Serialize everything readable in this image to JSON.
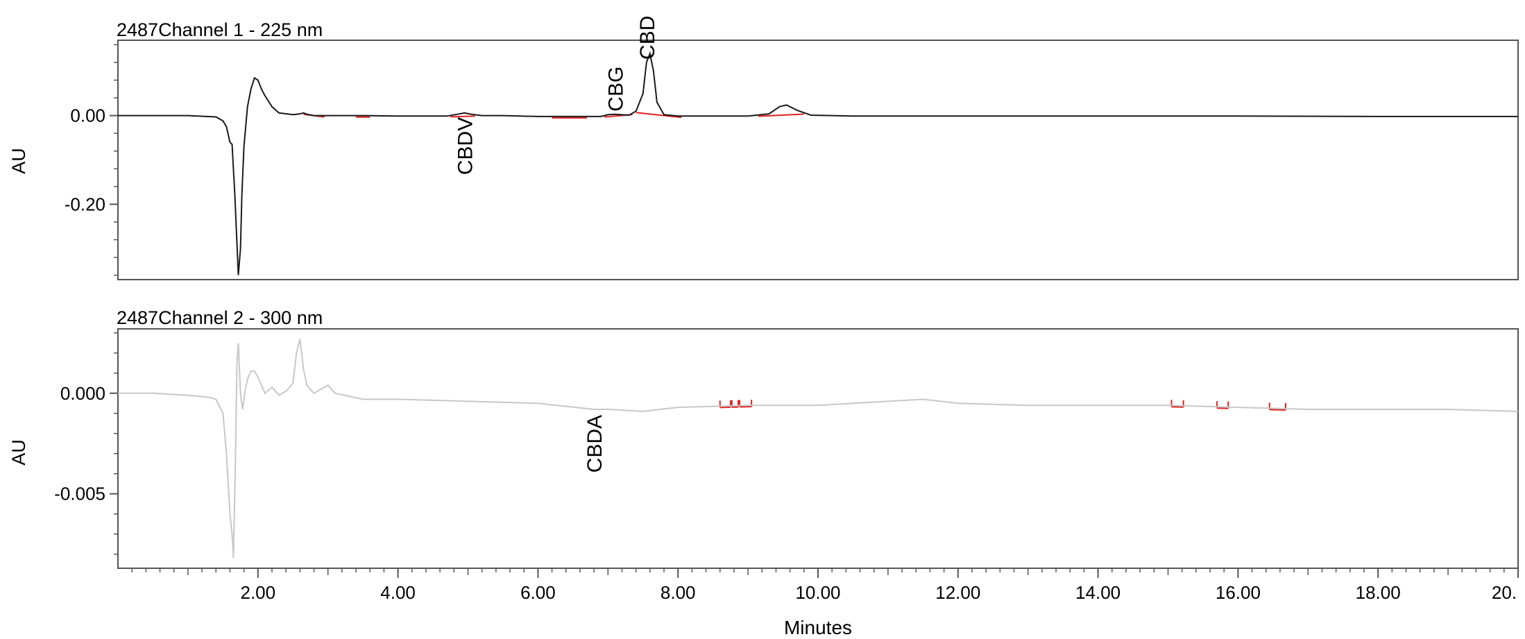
{
  "x_axis": {
    "label": "Minutes",
    "ticks": [
      "2.00",
      "4.00",
      "6.00",
      "8.00",
      "10.00",
      "12.00",
      "14.00",
      "16.00",
      "18.00",
      "20."
    ]
  },
  "chart_data": [
    {
      "type": "line",
      "title": "2487Channel 1 - 225 nm",
      "xlabel": "Minutes",
      "ylabel": "AU",
      "xlim": [
        0.0,
        20.0
      ],
      "ylim": [
        -0.37,
        0.17
      ],
      "y_ticks": [
        0.0,
        -0.2
      ],
      "y_tick_labels": [
        "0.00",
        "-0.20"
      ],
      "x": [
        0.0,
        1.0,
        1.4,
        1.5,
        1.55,
        1.6,
        1.63,
        1.67,
        1.72,
        1.75,
        1.77,
        1.8,
        1.85,
        1.9,
        1.95,
        2.0,
        2.05,
        2.1,
        2.2,
        2.3,
        2.5,
        2.6,
        2.65,
        2.7,
        2.8,
        3.0,
        3.5,
        4.0,
        4.7,
        4.85,
        4.95,
        5.05,
        5.2,
        5.5,
        6.0,
        6.5,
        6.9,
        7.0,
        7.1,
        7.3,
        7.4,
        7.5,
        7.55,
        7.6,
        7.65,
        7.7,
        7.8,
        8.0,
        8.5,
        9.0,
        9.3,
        9.45,
        9.55,
        9.7,
        9.9,
        10.5,
        12.0,
        14.0,
        16.0,
        18.0,
        20.0
      ],
      "y": [
        0.0,
        0.0,
        -0.003,
        -0.012,
        -0.025,
        -0.06,
        -0.065,
        -0.18,
        -0.36,
        -0.3,
        -0.18,
        -0.07,
        0.02,
        0.06,
        0.085,
        0.08,
        0.06,
        0.045,
        0.02,
        0.006,
        0.002,
        0.004,
        0.006,
        0.003,
        0.0,
        0.0,
        0.0,
        -0.001,
        -0.001,
        0.003,
        0.006,
        0.003,
        0.0,
        0.0,
        -0.002,
        -0.002,
        -0.002,
        0.002,
        0.003,
        0.001,
        0.01,
        0.05,
        0.12,
        0.14,
        0.1,
        0.03,
        0.002,
        -0.001,
        -0.001,
        -0.001,
        0.004,
        0.02,
        0.024,
        0.012,
        0.001,
        -0.001,
        -0.001,
        -0.001,
        -0.001,
        -0.002,
        -0.002
      ],
      "peak_labels": [
        {
          "label": "CBDV",
          "x": 4.95
        },
        {
          "label": "CBG",
          "x": 7.1
        },
        {
          "label": "CBD",
          "x": 7.55
        }
      ],
      "integration_marks_x": [
        [
          2.65,
          2.95
        ],
        [
          3.4,
          3.6
        ],
        [
          4.75,
          5.1
        ],
        [
          6.2,
          6.7
        ],
        [
          6.95,
          7.35
        ],
        [
          7.4,
          8.05
        ],
        [
          9.15,
          9.8
        ]
      ],
      "line_color": "#1a1a1a",
      "marker_color": "#e02020"
    },
    {
      "type": "line",
      "title": "2487Channel 2 - 300 nm",
      "xlabel": "Minutes",
      "ylabel": "AU",
      "xlim": [
        0.0,
        20.0
      ],
      "ylim": [
        -0.0087,
        0.0032
      ],
      "y_ticks": [
        0.0,
        -0.005
      ],
      "y_tick_labels": [
        "0.000",
        "-0.005"
      ],
      "x": [
        0.0,
        0.5,
        1.0,
        1.3,
        1.4,
        1.5,
        1.55,
        1.6,
        1.63,
        1.65,
        1.68,
        1.7,
        1.72,
        1.75,
        1.78,
        1.82,
        1.86,
        1.9,
        1.95,
        2.0,
        2.1,
        2.2,
        2.3,
        2.4,
        2.5,
        2.55,
        2.6,
        2.65,
        2.7,
        2.8,
        2.9,
        3.0,
        3.1,
        3.5,
        4.0,
        5.0,
        6.0,
        6.8,
        7.0,
        7.5,
        8.0,
        9.0,
        10.0,
        11.0,
        11.5,
        12.0,
        13.0,
        14.0,
        15.0,
        16.0,
        17.0,
        18.0,
        19.0,
        20.0
      ],
      "y": [
        0.0,
        0.0,
        -0.0001,
        -0.0002,
        -0.0003,
        -0.001,
        -0.003,
        -0.006,
        -0.007,
        -0.0082,
        -0.003,
        0.0015,
        0.0025,
        0.0,
        -0.0008,
        0.0002,
        0.0008,
        0.0011,
        0.0011,
        0.0008,
        0.0,
        0.0003,
        -0.0001,
        0.0001,
        0.0005,
        0.002,
        0.0027,
        0.0012,
        0.0004,
        0.0,
        0.0002,
        0.0004,
        0.0,
        -0.0003,
        -0.0003,
        -0.0004,
        -0.0005,
        -0.0008,
        -0.0008,
        -0.0009,
        -0.0007,
        -0.0006,
        -0.0006,
        -0.0004,
        -0.0003,
        -0.0005,
        -0.0006,
        -0.0006,
        -0.0006,
        -0.0007,
        -0.0008,
        -0.0008,
        -0.0008,
        -0.0009
      ],
      "peak_labels": [
        {
          "label": "CBDA",
          "x": 6.8
        }
      ],
      "integration_marks_x": [
        [
          8.6,
          8.75
        ],
        [
          8.77,
          8.86
        ],
        [
          8.88,
          9.05
        ],
        [
          15.05,
          15.22
        ],
        [
          15.7,
          15.86
        ],
        [
          16.45,
          16.68
        ]
      ],
      "line_color": "#c8c8c8",
      "marker_color": "#e02020"
    }
  ]
}
